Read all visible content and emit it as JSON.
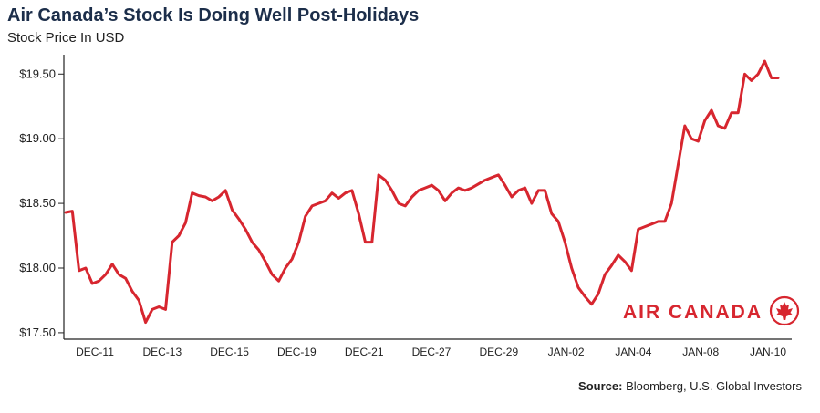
{
  "chart_data": {
    "type": "line",
    "title": "Air Canada’s Stock Is Doing Well Post-Holidays",
    "subtitle": "Stock Price In USD",
    "ylabel": "",
    "xlabel": "",
    "ylim": [
      17.45,
      19.65
    ],
    "y_ticks": [
      "$17.50",
      "$18.00",
      "$18.50",
      "$19.00",
      "$19.50"
    ],
    "y_tick_values": [
      17.5,
      18.0,
      18.5,
      19.0,
      19.5
    ],
    "x_ticks": [
      "DEC-11",
      "DEC-13",
      "DEC-15",
      "DEC-19",
      "DEC-21",
      "DEC-27",
      "DEC-29",
      "JAN-02",
      "JAN-04",
      "JAN-08",
      "JAN-10"
    ],
    "grid": false,
    "line_color": "#d7262f",
    "series": [
      {
        "values": [
          18.43,
          18.44,
          17.98,
          18.0,
          17.88,
          17.9,
          17.95,
          18.03,
          17.95,
          17.92,
          17.82,
          17.75,
          17.58,
          17.68,
          17.7,
          17.68,
          18.2,
          18.25,
          18.35,
          18.58,
          18.56,
          18.55,
          18.52,
          18.55,
          18.6,
          18.45,
          18.38,
          18.3,
          18.2,
          18.14,
          18.05,
          17.95,
          17.9,
          18.0,
          18.07,
          18.2,
          18.4,
          18.48,
          18.5,
          18.52,
          18.58,
          18.54,
          18.58,
          18.6,
          18.42,
          18.2,
          18.2,
          18.72,
          18.68,
          18.6,
          18.5,
          18.48,
          18.55,
          18.6,
          18.62,
          18.64,
          18.6,
          18.52,
          18.58,
          18.62,
          18.6,
          18.62,
          18.65,
          18.68,
          18.7,
          18.72,
          18.64,
          18.55,
          18.6,
          18.62,
          18.5,
          18.6,
          18.6,
          18.42,
          18.36,
          18.2,
          18.0,
          17.85,
          17.78,
          17.72,
          17.8,
          17.95,
          18.02,
          18.1,
          18.05,
          17.98,
          18.3,
          18.32,
          18.34,
          18.36,
          18.36,
          18.5,
          18.8,
          19.1,
          19.0,
          18.98,
          19.14,
          19.22,
          19.1,
          19.08,
          19.2,
          19.2,
          19.5,
          19.45,
          19.5,
          19.6,
          19.47,
          19.47
        ]
      }
    ]
  },
  "logo": {
    "text": "AIR CANADA",
    "icon": "maple-leaf-roundel-icon",
    "color": "#d7262f"
  },
  "source": {
    "label": "Source:",
    "text": "Bloomberg, U.S. Global Investors"
  }
}
